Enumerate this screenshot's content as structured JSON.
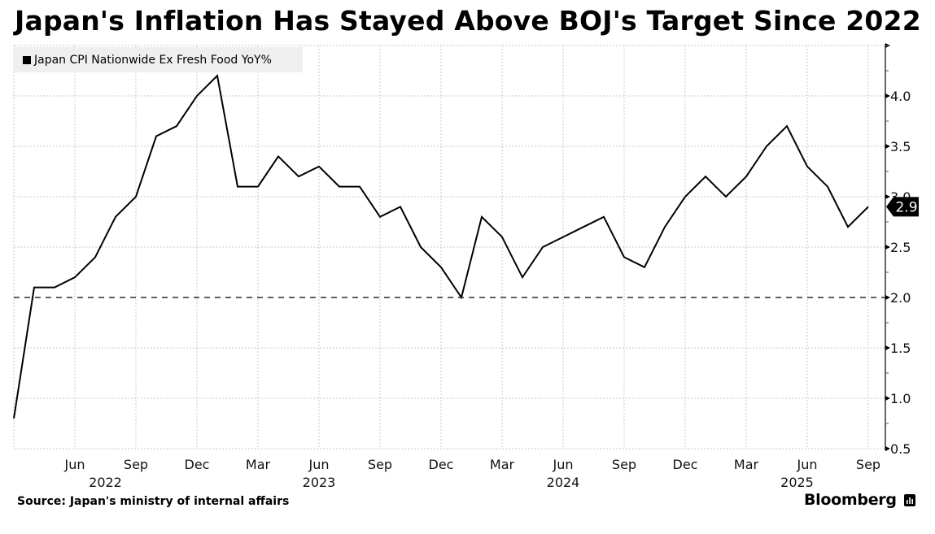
{
  "title": "Japan's Inflation Has Stayed Above BOJ's Target Since 2022",
  "source": "Source: Japan's ministry of internal affairs",
  "brand": "Bloomberg",
  "colors": {
    "line": "#000000",
    "legend_bg": "#efefef",
    "grid": "#c8c8c8"
  },
  "chart_data": {
    "type": "line",
    "title": "Japan's Inflation Has Stayed Above BOJ's Target Since 2022",
    "xlabel": "",
    "ylabel": "",
    "legend": {
      "position": "top-left",
      "entries": [
        "Japan CPI Nationwide Ex Fresh Food YoY%"
      ]
    },
    "series": [
      {
        "name": "Japan CPI Nationwide Ex Fresh Food YoY%",
        "x": [
          "2022-03",
          "2022-04",
          "2022-05",
          "2022-06",
          "2022-07",
          "2022-08",
          "2022-09",
          "2022-10",
          "2022-11",
          "2022-12",
          "2023-01",
          "2023-02",
          "2023-03",
          "2023-04",
          "2023-05",
          "2023-06",
          "2023-07",
          "2023-08",
          "2023-09",
          "2023-10",
          "2023-11",
          "2023-12",
          "2024-01",
          "2024-02",
          "2024-03",
          "2024-04",
          "2024-05",
          "2024-06",
          "2024-07",
          "2024-08",
          "2024-09",
          "2024-10",
          "2024-11",
          "2024-12",
          "2025-01",
          "2025-02",
          "2025-03",
          "2025-04",
          "2025-05",
          "2025-06",
          "2025-07",
          "2025-08",
          "2025-09"
        ],
        "values": [
          0.8,
          2.1,
          2.1,
          2.2,
          2.4,
          2.8,
          3.0,
          3.6,
          3.7,
          4.0,
          4.2,
          3.1,
          3.1,
          3.4,
          3.2,
          3.3,
          3.1,
          3.1,
          2.8,
          2.9,
          2.5,
          2.3,
          2.0,
          2.8,
          2.6,
          2.2,
          2.5,
          2.6,
          2.7,
          2.8,
          2.4,
          2.3,
          2.7,
          3.0,
          3.2,
          3.0,
          3.2,
          3.5,
          3.7,
          3.3,
          3.1,
          2.7,
          2.9
        ]
      }
    ],
    "reference_line": {
      "value": 2.0,
      "style": "dashed"
    },
    "last_value_label": "2.9",
    "ylim": [
      0.5,
      4.5
    ],
    "y_ticks": [
      {
        "value": 0.5,
        "label": "0.5"
      },
      {
        "value": 1.0,
        "label": "1.0"
      },
      {
        "value": 1.5,
        "label": "1.5"
      },
      {
        "value": 2.0,
        "label": "2.0"
      },
      {
        "value": 2.5,
        "label": "2.5"
      },
      {
        "value": 3.0,
        "label": "3.0"
      },
      {
        "value": 3.5,
        "label": "3.5"
      },
      {
        "value": 4.0,
        "label": "4.0"
      }
    ],
    "y_axis_side": "right",
    "x_ticks": [
      {
        "month_index": 3,
        "label": "Jun"
      },
      {
        "month_index": 6,
        "label": "Sep"
      },
      {
        "month_index": 9,
        "label": "Dec"
      },
      {
        "month_index": 12,
        "label": "Mar"
      },
      {
        "month_index": 15,
        "label": "Jun"
      },
      {
        "month_index": 18,
        "label": "Sep"
      },
      {
        "month_index": 21,
        "label": "Dec"
      },
      {
        "month_index": 24,
        "label": "Mar"
      },
      {
        "month_index": 27,
        "label": "Jun"
      },
      {
        "month_index": 30,
        "label": "Sep"
      },
      {
        "month_index": 33,
        "label": "Dec"
      },
      {
        "month_index": 36,
        "label": "Mar"
      },
      {
        "month_index": 39,
        "label": "Jun"
      },
      {
        "month_index": 42,
        "label": "Sep"
      }
    ],
    "year_labels": [
      {
        "month_index": 4.5,
        "label": "2022"
      },
      {
        "month_index": 15,
        "label": "2023"
      },
      {
        "month_index": 27,
        "label": "2024"
      },
      {
        "month_index": 38.5,
        "label": "2025"
      }
    ],
    "grid": true
  }
}
